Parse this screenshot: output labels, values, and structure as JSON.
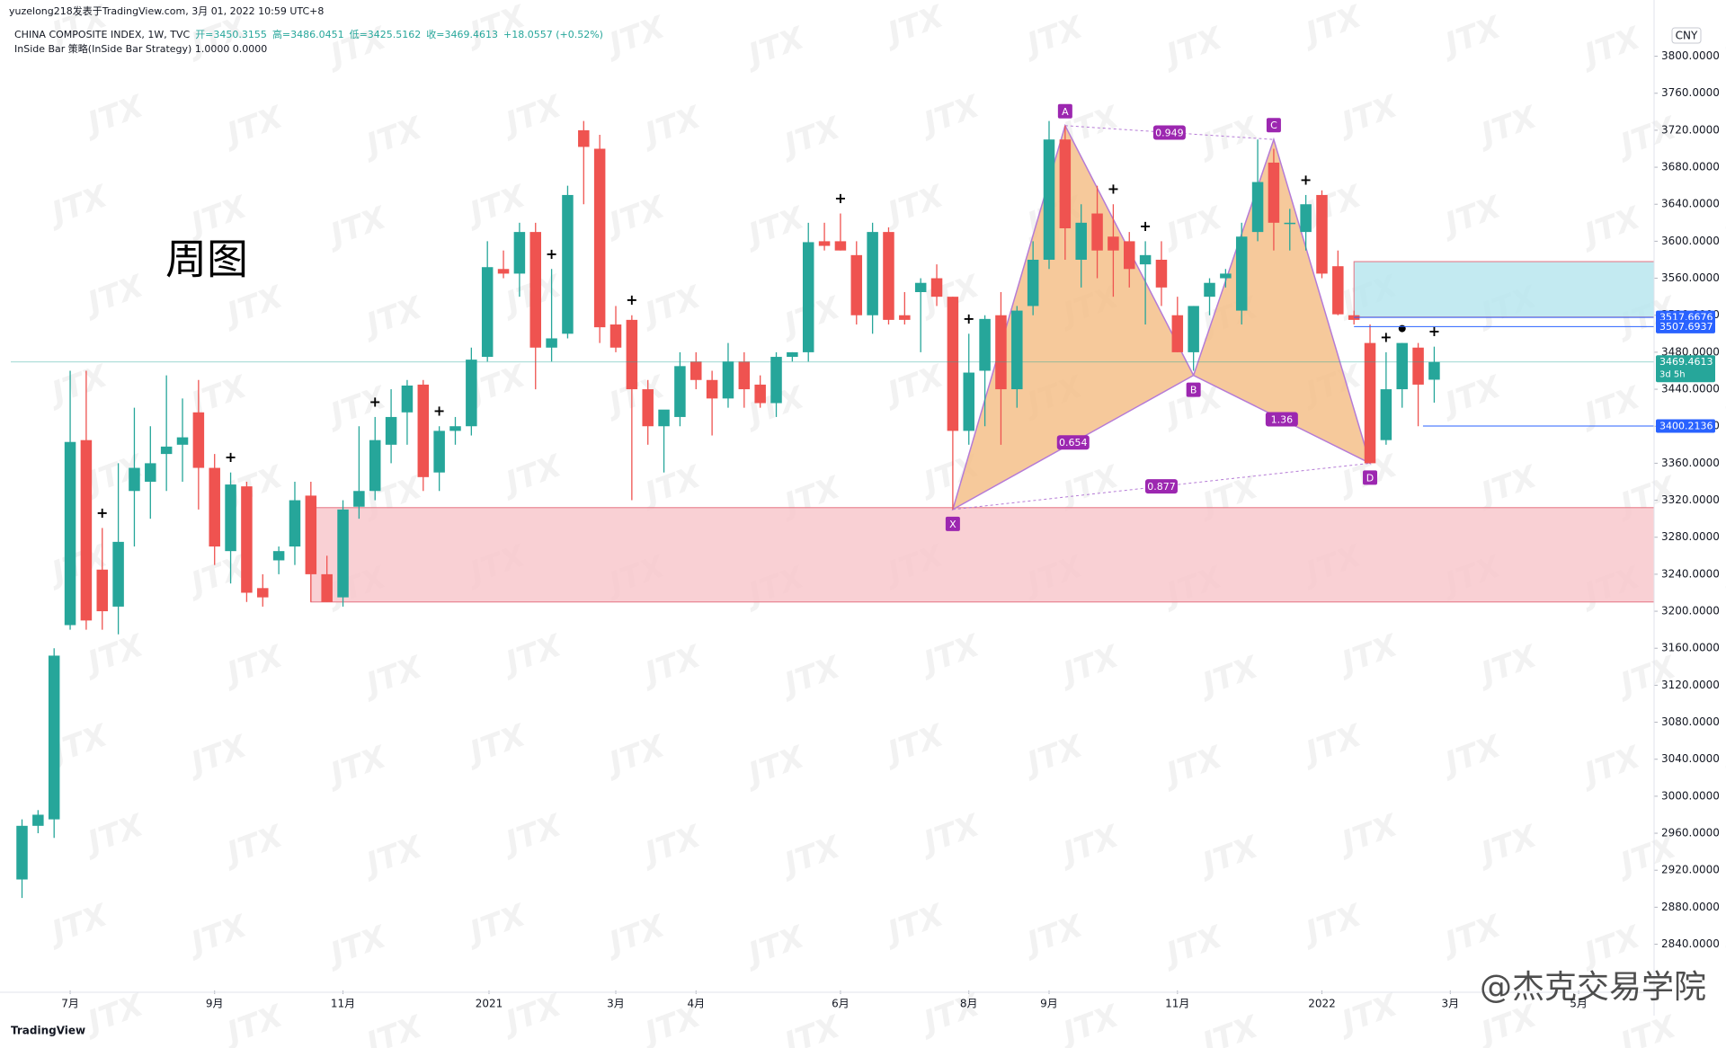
{
  "chart_data": {
    "type": "candlestick",
    "header": {
      "author": "yuzelong218发表于TradingView.com, 3月 01, 2022 10:59 UTC+8",
      "symbol": "CHINA COMPOSITE INDEX, 1W, TVC",
      "open": "开=3450.3155",
      "high": "高=3486.0451",
      "low": "低=3425.5162",
      "close": "收=3469.4613",
      "change": "+18.0557 (+0.52%)",
      "indicator": "InSide Bar 策略(InSide Bar Strategy)  1.0000  0.0000"
    },
    "label": "周图",
    "watermark": "JTX",
    "credit": "@杰克交易学院",
    "logo": "TradingView",
    "currency": "CNY",
    "countdown": "3d 5h",
    "marker": "+",
    "up_color": "#26a69a",
    "down_color": "#ef5350",
    "open": [
      2910,
      2968,
      2975,
      3185,
      3385,
      3245,
      3205,
      3330,
      3340,
      3370,
      3380,
      3415,
      3355,
      3265,
      3335,
      3225,
      3255,
      3270,
      3325,
      3240,
      3215,
      3313,
      3330,
      3380,
      3415,
      3445,
      3350,
      3395,
      3400,
      3475,
      3570,
      3565,
      3610,
      3485,
      3500,
      3720,
      3700,
      3510,
      3515,
      3440,
      3400,
      3410,
      3470,
      3450,
      3430,
      3470,
      3445,
      3425,
      3475,
      3480,
      3600,
      3600,
      3585,
      3520,
      3610,
      3520,
      3545,
      3560,
      3540,
      3395,
      3460,
      3520,
      3440,
      3530,
      3580,
      3710,
      3580,
      3630,
      3605,
      3600,
      3575,
      3580,
      3520,
      3480,
      3540,
      3560,
      3525,
      3610,
      3685,
      3620,
      3610,
      3650,
      3573,
      3520,
      3490,
      3385,
      3440,
      3485,
      3450.3155
    ],
    "high": [
      2975,
      2985,
      3160,
      3460,
      3460,
      3290,
      3360,
      3420,
      3400,
      3455,
      3430,
      3450,
      3370,
      3350,
      3340,
      3240,
      3270,
      3340,
      3340,
      3260,
      3320,
      3400,
      3410,
      3440,
      3450,
      3450,
      3400,
      3410,
      3485,
      3600,
      3590,
      3620,
      3620,
      3570,
      3660,
      3730,
      3715,
      3530,
      3520,
      3450,
      3410,
      3480,
      3480,
      3460,
      3490,
      3480,
      3455,
      3480,
      3480,
      3620,
      3620,
      3630,
      3600,
      3620,
      3615,
      3545,
      3560,
      3575,
      3540,
      3500,
      3520,
      3545,
      3530,
      3600,
      3730,
      3725,
      3640,
      3660,
      3640,
      3610,
      3600,
      3600,
      3540,
      3530,
      3560,
      3570,
      3620,
      3710,
      3700,
      3635,
      3650,
      3655,
      3590,
      3525,
      3510,
      3480,
      3490,
      3490,
      3486.0451
    ],
    "low": [
      2890,
      2960,
      2955,
      3180,
      3180,
      3180,
      3175,
      3270,
      3300,
      3330,
      3340,
      3310,
      3250,
      3230,
      3210,
      3205,
      3240,
      3250,
      3210,
      3210,
      3205,
      3300,
      3320,
      3360,
      3380,
      3330,
      3330,
      3380,
      3390,
      3470,
      3560,
      3540,
      3440,
      3470,
      3495,
      3640,
      3490,
      3480,
      3320,
      3380,
      3350,
      3400,
      3440,
      3390,
      3420,
      3420,
      3420,
      3410,
      3470,
      3470,
      3590,
      3590,
      3510,
      3500,
      3510,
      3510,
      3480,
      3530,
      3310,
      3380,
      3400,
      3380,
      3420,
      3520,
      3570,
      3580,
      3550,
      3560,
      3540,
      3550,
      3510,
      3530,
      3480,
      3460,
      3520,
      3550,
      3510,
      3600,
      3590,
      3590,
      3590,
      3560,
      3520,
      3510,
      3360,
      3380,
      3420,
      3400,
      3425.5162
    ],
    "close": [
      2968,
      2980,
      3152,
      3383,
      3190,
      3200,
      3275,
      3355,
      3360,
      3378,
      3388,
      3355,
      3270,
      3337,
      3220,
      3215,
      3265,
      3320,
      3240,
      3210,
      3310,
      3330,
      3385,
      3410,
      3444,
      3345,
      3395,
      3400,
      3472,
      3572,
      3565,
      3610,
      3485,
      3495,
      3650,
      3702,
      3507,
      3485,
      3440,
      3400,
      3418,
      3465,
      3450,
      3430,
      3470,
      3440,
      3425,
      3475,
      3480,
      3599,
      3595,
      3590,
      3520,
      3610,
      3515,
      3515,
      3555,
      3540,
      3395,
      3458,
      3516,
      3440,
      3525,
      3580,
      3710,
      3614,
      3620,
      3590,
      3590,
      3570,
      3585,
      3550,
      3480,
      3530,
      3555,
      3565,
      3605,
      3664,
      3620,
      3620,
      3640,
      3565,
      3521,
      3515,
      3360,
      3440,
      3490,
      3445,
      3469.4613
    ],
    "xlim": [
      -0.7,
      101.7
    ],
    "xticks": [
      {
        "value": 3,
        "label": "7月"
      },
      {
        "value": 12,
        "label": "9月"
      },
      {
        "value": 20,
        "label": "11月"
      },
      {
        "value": 29.1,
        "label": "2021"
      },
      {
        "value": 37,
        "label": "3月"
      },
      {
        "value": 42,
        "label": "4月"
      },
      {
        "value": 51,
        "label": "6月"
      },
      {
        "value": 59,
        "label": "8月"
      },
      {
        "value": 64,
        "label": "9月"
      },
      {
        "value": 72,
        "label": "11月"
      },
      {
        "value": 81,
        "label": "2022"
      },
      {
        "value": 89,
        "label": "3月"
      },
      {
        "value": 97,
        "label": "5月"
      }
    ],
    "ylim": [
      2790,
      3837
    ],
    "yticks": [
      {
        "value": 2840,
        "label": "2840.0000"
      },
      {
        "value": 2880,
        "label": "2880.0000"
      },
      {
        "value": 2920,
        "label": "2920.0000"
      },
      {
        "value": 2960,
        "label": "2960.0000"
      },
      {
        "value": 3000,
        "label": "3000.0000"
      },
      {
        "value": 3040,
        "label": "3040.0000"
      },
      {
        "value": 3080,
        "label": "3080.0000"
      },
      {
        "value": 3120,
        "label": "3120.0000"
      },
      {
        "value": 3160,
        "label": "3160.0000"
      },
      {
        "value": 3200,
        "label": "3200.0000"
      },
      {
        "value": 3240,
        "label": "3240.0000"
      },
      {
        "value": 3280,
        "label": "3280.0000"
      },
      {
        "value": 3320,
        "label": "3320.0000"
      },
      {
        "value": 3360,
        "label": "3360.0000"
      },
      {
        "value": 3400,
        "label": "3400.0000"
      },
      {
        "value": 3440,
        "label": "3440.0000"
      },
      {
        "value": 3480,
        "label": "3480.0000"
      },
      {
        "value": 3520,
        "label": "3520.0000"
      },
      {
        "value": 3560,
        "label": "3560.0000"
      },
      {
        "value": 3600,
        "label": "3600.0000"
      },
      {
        "value": 3640,
        "label": "3640.0000"
      },
      {
        "value": 3680,
        "label": "3680.0000"
      },
      {
        "value": 3720,
        "label": "3720.0000"
      },
      {
        "value": 3760,
        "label": "3760.0000"
      },
      {
        "value": 3800,
        "label": "3800.0000"
      }
    ],
    "zones": [
      {
        "from": 18,
        "bottom": 3210,
        "top": 3312,
        "color": "#f8c8cc",
        "stroke": "#e57382"
      },
      {
        "from": 83,
        "bottom": 3518,
        "top": 3578,
        "color": "#b9e6ee",
        "stroke": "#e57382"
      }
    ],
    "price_labels": [
      3517.6676,
      3507.6937,
      3469.4613,
      3400.2136
    ],
    "harmonic": {
      "points": [
        {
          "label": "X",
          "index": 58,
          "value": 3310
        },
        {
          "label": "A",
          "index": 65,
          "value": 3725
        },
        {
          "label": "B",
          "index": 73,
          "value": 3455
        },
        {
          "label": "C",
          "index": 78,
          "value": 3710
        },
        {
          "label": "D",
          "index": 84,
          "value": 3360
        }
      ],
      "ratios": [
        "0.949",
        "0.654",
        "1.36",
        "0.877"
      ]
    }
  }
}
